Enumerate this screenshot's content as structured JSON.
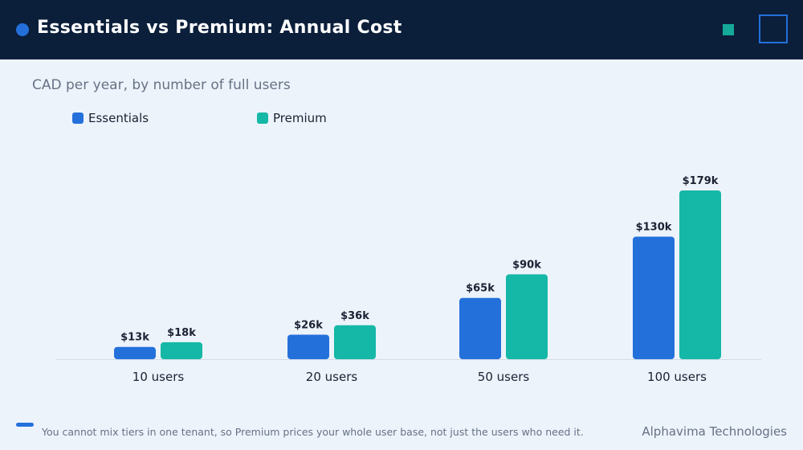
{
  "header": {
    "title": "Essentials vs Premium: Annual Cost",
    "accent_color": "#2470DB",
    "bg_color": "#0B1F3B"
  },
  "subtitle": "CAD per year, by number of full users",
  "legend": [
    {
      "label": "Essentials",
      "color": "#2470DB"
    },
    {
      "label": "Premium",
      "color": "#15B8A6"
    }
  ],
  "chart_data": {
    "type": "bar",
    "categories": [
      "10 users",
      "20 users",
      "50 users",
      "100 users"
    ],
    "series": [
      {
        "name": "Essentials",
        "values": [
          13,
          26,
          65,
          130
        ],
        "labels": [
          "$13k",
          "$26k",
          "$65k",
          "$130k"
        ],
        "color": "#2470DB"
      },
      {
        "name": "Premium",
        "values": [
          18,
          36,
          90,
          179
        ],
        "labels": [
          "$18k",
          "$36k",
          "$90k",
          "$179k"
        ],
        "color": "#15B8A6"
      }
    ],
    "ylim": [
      0,
      220
    ],
    "grid": false,
    "legend_position": "top-left"
  },
  "footer": {
    "note": "You cannot mix tiers in one tenant, so Premium prices your whole user base, not just the users who need it.",
    "brand": "Alphavima Technologies"
  }
}
